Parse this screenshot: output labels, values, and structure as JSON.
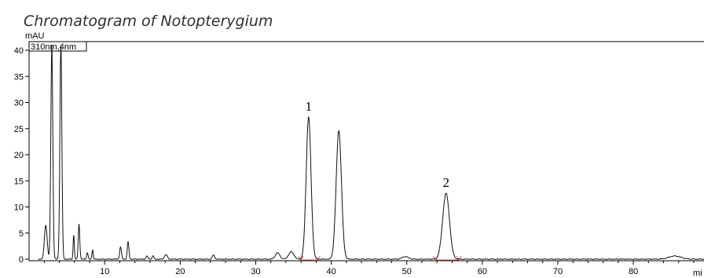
{
  "title": "Chromatogram of Notopterygium",
  "chart_data": {
    "type": "line",
    "title": "Chromatogram of Notopterygium",
    "ylabel": "mAU",
    "xlabel": "mi",
    "channel_label": "310nm,4nm",
    "xlim": [
      0,
      90
    ],
    "ylim": [
      -1,
      41
    ],
    "x_ticks": [
      10,
      20,
      30,
      40,
      50,
      60,
      70,
      80
    ],
    "y_ticks": [
      0,
      5,
      10,
      15,
      20,
      25,
      30,
      35,
      40
    ],
    "peak_labels": [
      {
        "text": "1",
        "x": 37.0,
        "y": 27.2
      },
      {
        "text": "2",
        "x": 55.2,
        "y": 12.6
      }
    ],
    "integration_baselines": [
      {
        "x_start": 36.0,
        "x_end": 38.2
      },
      {
        "x_start": 53.8,
        "x_end": 56.9
      }
    ],
    "peaks": [
      {
        "rt": 2.2,
        "height": 6.5,
        "width": 0.18
      },
      {
        "rt": 3.0,
        "height": 41,
        "width": 0.13
      },
      {
        "rt": 4.2,
        "height": 41,
        "width": 0.13
      },
      {
        "rt": 5.9,
        "height": 4.6,
        "width": 0.08
      },
      {
        "rt": 6.6,
        "height": 6.8,
        "width": 0.1
      },
      {
        "rt": 7.7,
        "height": 1.2,
        "width": 0.1
      },
      {
        "rt": 8.4,
        "height": 1.8,
        "width": 0.08
      },
      {
        "rt": 12.1,
        "height": 2.3,
        "width": 0.12
      },
      {
        "rt": 13.1,
        "height": 3.3,
        "width": 0.11
      },
      {
        "rt": 15.6,
        "height": 0.6,
        "width": 0.12
      },
      {
        "rt": 16.4,
        "height": 0.6,
        "width": 0.12
      },
      {
        "rt": 18.1,
        "height": 0.9,
        "width": 0.18
      },
      {
        "rt": 24.4,
        "height": 0.8,
        "width": 0.15
      },
      {
        "rt": 32.9,
        "height": 1.2,
        "width": 0.3
      },
      {
        "rt": 34.7,
        "height": 1.4,
        "width": 0.35
      },
      {
        "rt": 37.0,
        "height": 27.2,
        "width": 0.32
      },
      {
        "rt": 41.0,
        "height": 24.6,
        "width": 0.35
      },
      {
        "rt": 49.8,
        "height": 0.5,
        "width": 0.4
      },
      {
        "rt": 55.2,
        "height": 12.6,
        "width": 0.45
      },
      {
        "rt": 85.5,
        "height": 0.6,
        "width": 0.8
      }
    ]
  }
}
